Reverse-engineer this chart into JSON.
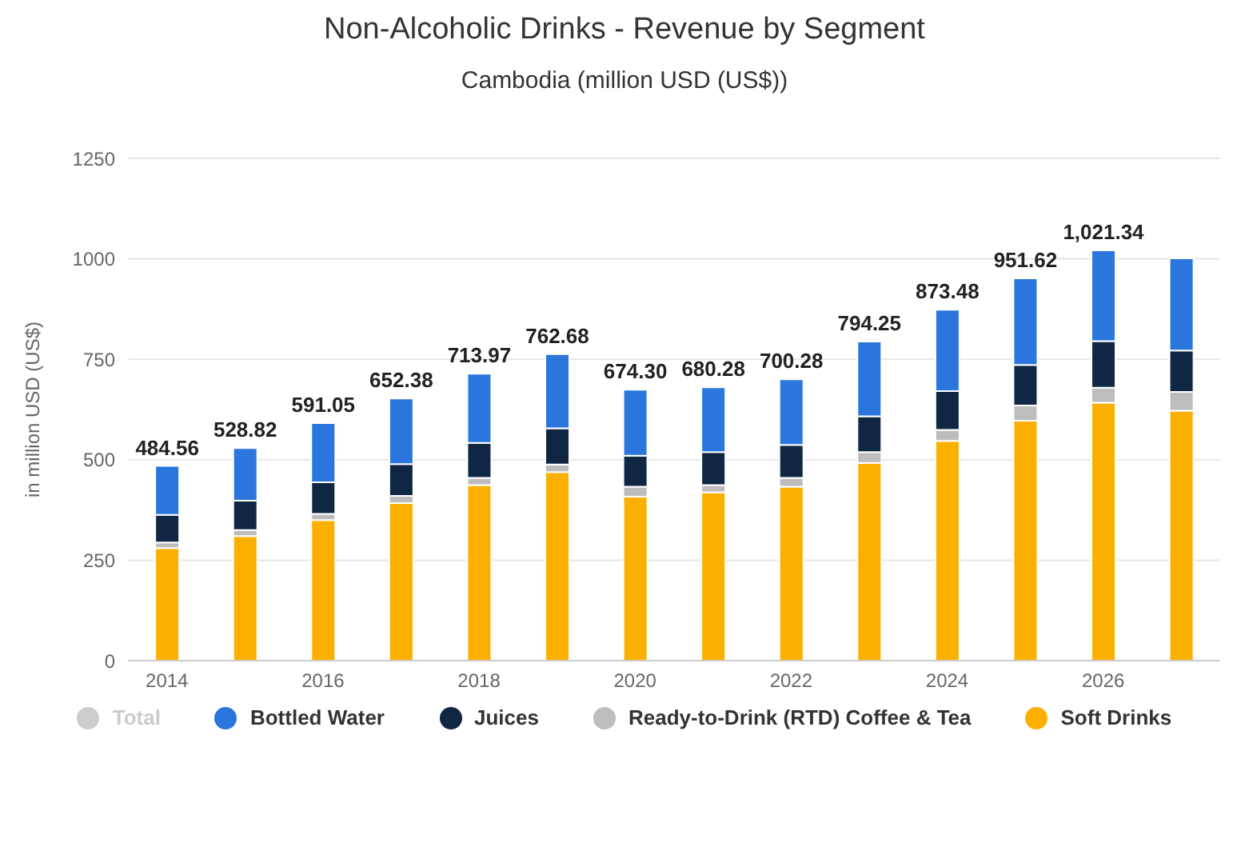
{
  "chart_data": {
    "type": "bar",
    "title": "Non-Alcoholic Drinks - Revenue by Segment",
    "subtitle": "Cambodia (million USD (US$))",
    "ylabel": "in million USD (US$)",
    "categories": [
      "2014",
      null,
      "2016",
      null,
      "2018",
      null,
      "2020",
      null,
      "2022",
      null,
      "2024",
      null,
      "2026",
      null
    ],
    "series": [
      {
        "name": "Total",
        "color": "#cccccc",
        "values": [
          null,
          null,
          null,
          null,
          null,
          null,
          null,
          null,
          null,
          null,
          null,
          null,
          null,
          null
        ]
      },
      {
        "name": "Soft Drinks",
        "color": "#fbb000",
        "values": [
          280,
          310,
          350,
          392,
          437,
          469,
          408,
          419,
          433,
          492,
          547,
          597,
          642,
          622
        ]
      },
      {
        "name": "Ready-to-Drink (RTD) Coffee & Tea",
        "color": "#bdbdbd",
        "values": [
          14,
          15,
          15,
          18,
          18,
          19,
          25,
          18,
          22,
          27,
          27,
          38,
          37,
          47
        ]
      },
      {
        "name": "Juices",
        "color": "#0f2742",
        "values": [
          69,
          73,
          79,
          79,
          87,
          90,
          77,
          82,
          82,
          89,
          97,
          101,
          116,
          103
        ]
      },
      {
        "name": "Bottled Water",
        "color": "#2a76dd",
        "values": [
          121.56,
          130.82,
          147.05,
          163.38,
          171.97,
          184.68,
          164.3,
          161.28,
          163.28,
          186.25,
          202.48,
          215.62,
          226.34,
          229
        ]
      }
    ],
    "totals": [
      "484.56",
      "528.82",
      "591.05",
      "652.38",
      "713.97",
      "762.68",
      "674.30",
      "680.28",
      "700.28",
      "794.25",
      "873.48",
      "951.62",
      "1,021.34",
      null
    ],
    "stacked": true,
    "ylim": [
      0,
      1250
    ],
    "yticks": [
      0,
      250,
      500,
      750,
      1000,
      1250
    ],
    "grid": "y",
    "legend": "bottom"
  }
}
